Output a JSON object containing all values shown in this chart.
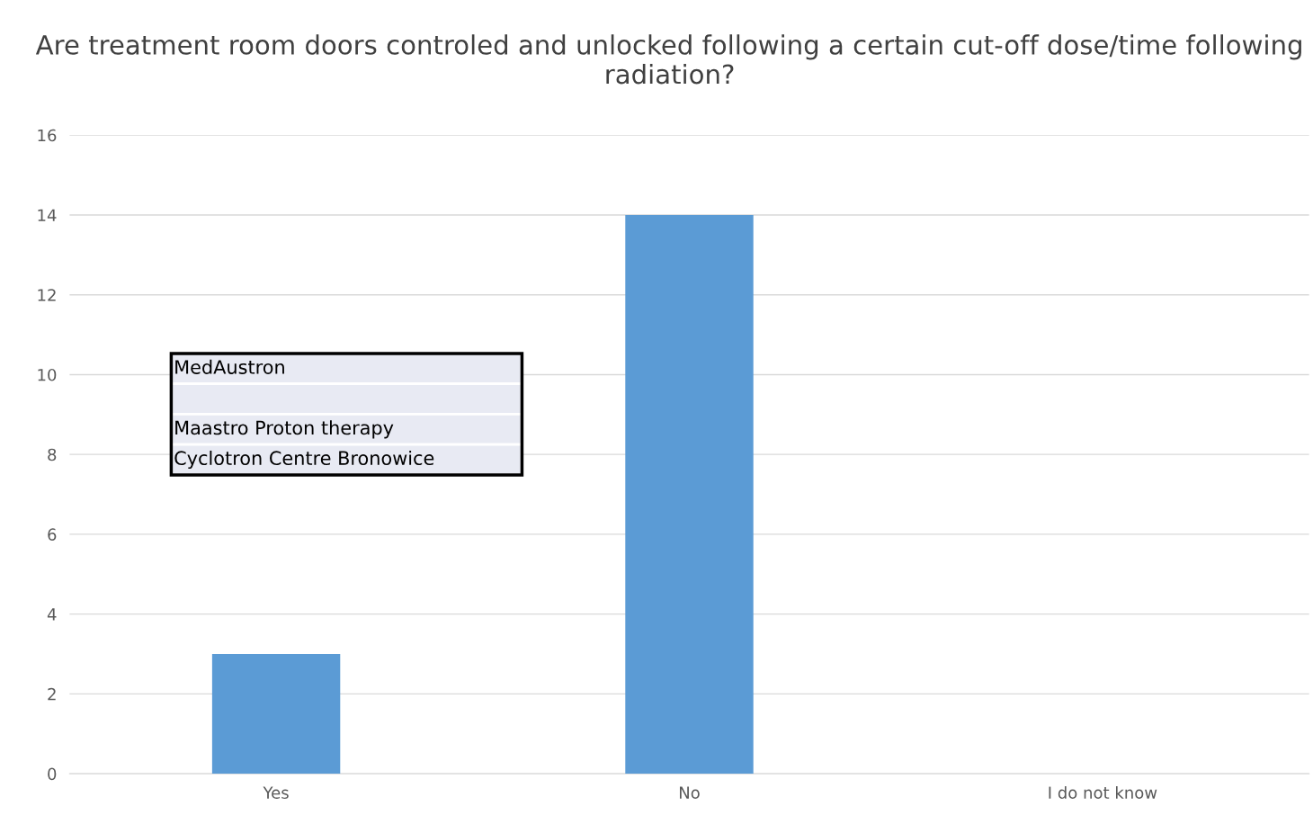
{
  "chart_data": {
    "type": "bar",
    "title": "Are treatment room doors controled and unlocked following a certain cut-off dose/time following radiation?",
    "categories": [
      "Yes",
      "No",
      "I do not know"
    ],
    "values": [
      3,
      14,
      0
    ],
    "color": "#5b9bd5",
    "ylim": [
      0,
      16
    ],
    "yticks": [
      0,
      2,
      4,
      6,
      8,
      10,
      12,
      14,
      16
    ],
    "grid": "y",
    "annotations": [
      "MedAustron\n\nMaastro Proton therapy\nCyclotron Centre Bronowice"
    ]
  }
}
